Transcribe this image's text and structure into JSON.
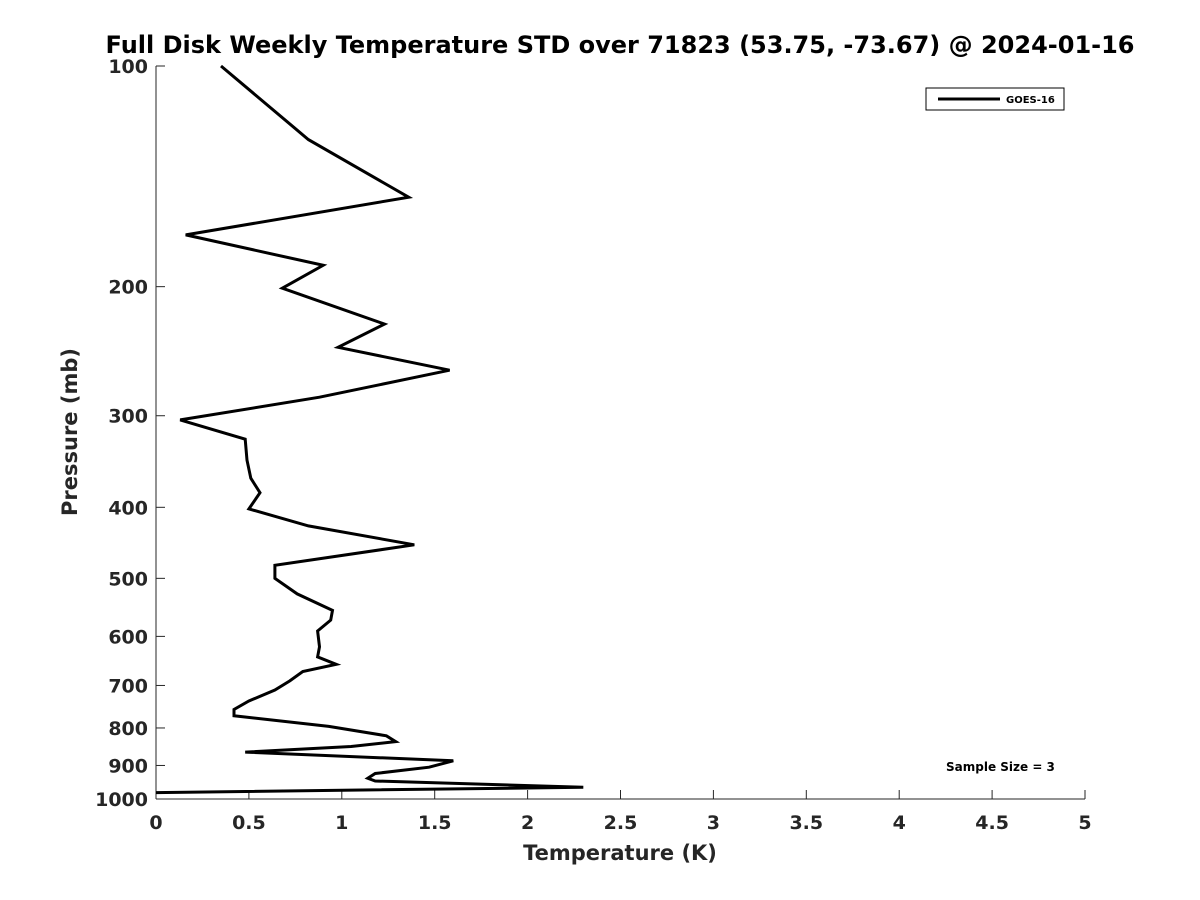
{
  "chart_data": {
    "type": "line",
    "title": "Full Disk Weekly Temperature STD over 71823 (53.75, -73.67) @ 2024-01-16",
    "xlabel": "Temperature (K)",
    "ylabel": "Pressure (mb)",
    "xlim": [
      0,
      5
    ],
    "ylim": [
      100,
      1000
    ],
    "y_scale": "log",
    "y_reversed": true,
    "x_ticks": [
      0,
      0.5,
      1,
      1.5,
      2,
      2.5,
      3,
      3.5,
      4,
      4.5,
      5
    ],
    "x_tick_labels": [
      "0",
      "0.5",
      "1",
      "1.5",
      "2",
      "2.5",
      "3",
      "3.5",
      "4",
      "4.5",
      "5"
    ],
    "y_ticks": [
      100,
      200,
      300,
      400,
      500,
      600,
      700,
      800,
      900,
      1000
    ],
    "y_tick_labels": [
      "100",
      "200",
      "300",
      "400",
      "500",
      "600",
      "700",
      "800",
      "900",
      "1000"
    ],
    "grid": false,
    "legend_position": "top-right",
    "annotation": "Sample Size = 3",
    "series": [
      {
        "name": "GOES-16",
        "color": "#000000",
        "points": [
          [
            0.35,
            100
          ],
          [
            0.82,
            126
          ],
          [
            1.36,
            151
          ],
          [
            0.16,
            170
          ],
          [
            0.9,
            187
          ],
          [
            0.68,
            201
          ],
          [
            1.23,
            225
          ],
          [
            0.98,
            242
          ],
          [
            1.58,
            260
          ],
          [
            0.88,
            283
          ],
          [
            0.13,
            304
          ],
          [
            0.48,
            323
          ],
          [
            0.49,
            345
          ],
          [
            0.51,
            365
          ],
          [
            0.56,
            382
          ],
          [
            0.5,
            402
          ],
          [
            0.82,
            424
          ],
          [
            1.39,
            450
          ],
          [
            0.64,
            480
          ],
          [
            0.64,
            500
          ],
          [
            0.76,
            525
          ],
          [
            0.95,
            553
          ],
          [
            0.94,
            570
          ],
          [
            0.87,
            590
          ],
          [
            0.88,
            620
          ],
          [
            0.87,
            640
          ],
          [
            0.97,
            655
          ],
          [
            0.79,
            670
          ],
          [
            0.72,
            690
          ],
          [
            0.64,
            710
          ],
          [
            0.5,
            735
          ],
          [
            0.42,
            755
          ],
          [
            0.42,
            770
          ],
          [
            0.93,
            796
          ],
          [
            1.24,
            820
          ],
          [
            1.29,
            835
          ],
          [
            1.05,
            848
          ],
          [
            0.48,
            863
          ],
          [
            1.6,
            887
          ],
          [
            1.47,
            905
          ],
          [
            1.18,
            923
          ],
          [
            1.14,
            937
          ],
          [
            1.18,
            945
          ],
          [
            2.3,
            964
          ],
          [
            0.0,
            980
          ]
        ]
      }
    ]
  }
}
